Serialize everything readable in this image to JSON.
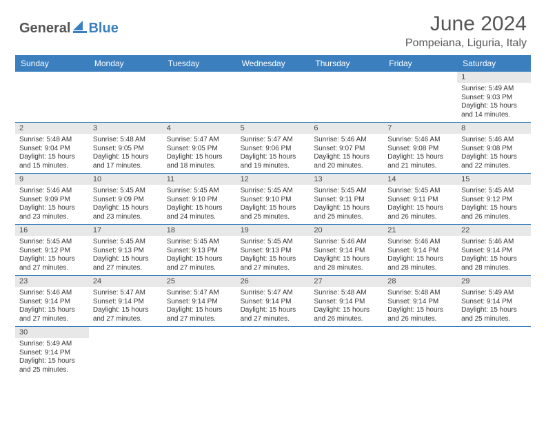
{
  "brand": {
    "part1": "General",
    "part2": "Blue"
  },
  "title": "June 2024",
  "location": "Pompeiana, Liguria, Italy",
  "colors": {
    "header_bg": "#3b7fbf",
    "header_text": "#ffffff",
    "daynum_bg": "#e8e8e8",
    "text": "#333333",
    "title_text": "#555555"
  },
  "dayNames": [
    "Sunday",
    "Monday",
    "Tuesday",
    "Wednesday",
    "Thursday",
    "Friday",
    "Saturday"
  ],
  "weeks": [
    [
      null,
      null,
      null,
      null,
      null,
      null,
      {
        "d": "1",
        "sr": "5:49 AM",
        "ss": "9:03 PM",
        "dl": "15 hours and 14 minutes."
      }
    ],
    [
      {
        "d": "2",
        "sr": "5:48 AM",
        "ss": "9:04 PM",
        "dl": "15 hours and 15 minutes."
      },
      {
        "d": "3",
        "sr": "5:48 AM",
        "ss": "9:05 PM",
        "dl": "15 hours and 17 minutes."
      },
      {
        "d": "4",
        "sr": "5:47 AM",
        "ss": "9:05 PM",
        "dl": "15 hours and 18 minutes."
      },
      {
        "d": "5",
        "sr": "5:47 AM",
        "ss": "9:06 PM",
        "dl": "15 hours and 19 minutes."
      },
      {
        "d": "6",
        "sr": "5:46 AM",
        "ss": "9:07 PM",
        "dl": "15 hours and 20 minutes."
      },
      {
        "d": "7",
        "sr": "5:46 AM",
        "ss": "9:08 PM",
        "dl": "15 hours and 21 minutes."
      },
      {
        "d": "8",
        "sr": "5:46 AM",
        "ss": "9:08 PM",
        "dl": "15 hours and 22 minutes."
      }
    ],
    [
      {
        "d": "9",
        "sr": "5:46 AM",
        "ss": "9:09 PM",
        "dl": "15 hours and 23 minutes."
      },
      {
        "d": "10",
        "sr": "5:45 AM",
        "ss": "9:09 PM",
        "dl": "15 hours and 23 minutes."
      },
      {
        "d": "11",
        "sr": "5:45 AM",
        "ss": "9:10 PM",
        "dl": "15 hours and 24 minutes."
      },
      {
        "d": "12",
        "sr": "5:45 AM",
        "ss": "9:10 PM",
        "dl": "15 hours and 25 minutes."
      },
      {
        "d": "13",
        "sr": "5:45 AM",
        "ss": "9:11 PM",
        "dl": "15 hours and 25 minutes."
      },
      {
        "d": "14",
        "sr": "5:45 AM",
        "ss": "9:11 PM",
        "dl": "15 hours and 26 minutes."
      },
      {
        "d": "15",
        "sr": "5:45 AM",
        "ss": "9:12 PM",
        "dl": "15 hours and 26 minutes."
      }
    ],
    [
      {
        "d": "16",
        "sr": "5:45 AM",
        "ss": "9:12 PM",
        "dl": "15 hours and 27 minutes."
      },
      {
        "d": "17",
        "sr": "5:45 AM",
        "ss": "9:13 PM",
        "dl": "15 hours and 27 minutes."
      },
      {
        "d": "18",
        "sr": "5:45 AM",
        "ss": "9:13 PM",
        "dl": "15 hours and 27 minutes."
      },
      {
        "d": "19",
        "sr": "5:45 AM",
        "ss": "9:13 PM",
        "dl": "15 hours and 27 minutes."
      },
      {
        "d": "20",
        "sr": "5:46 AM",
        "ss": "9:14 PM",
        "dl": "15 hours and 28 minutes."
      },
      {
        "d": "21",
        "sr": "5:46 AM",
        "ss": "9:14 PM",
        "dl": "15 hours and 28 minutes."
      },
      {
        "d": "22",
        "sr": "5:46 AM",
        "ss": "9:14 PM",
        "dl": "15 hours and 28 minutes."
      }
    ],
    [
      {
        "d": "23",
        "sr": "5:46 AM",
        "ss": "9:14 PM",
        "dl": "15 hours and 27 minutes."
      },
      {
        "d": "24",
        "sr": "5:47 AM",
        "ss": "9:14 PM",
        "dl": "15 hours and 27 minutes."
      },
      {
        "d": "25",
        "sr": "5:47 AM",
        "ss": "9:14 PM",
        "dl": "15 hours and 27 minutes."
      },
      {
        "d": "26",
        "sr": "5:47 AM",
        "ss": "9:14 PM",
        "dl": "15 hours and 27 minutes."
      },
      {
        "d": "27",
        "sr": "5:48 AM",
        "ss": "9:14 PM",
        "dl": "15 hours and 26 minutes."
      },
      {
        "d": "28",
        "sr": "5:48 AM",
        "ss": "9:14 PM",
        "dl": "15 hours and 26 minutes."
      },
      {
        "d": "29",
        "sr": "5:49 AM",
        "ss": "9:14 PM",
        "dl": "15 hours and 25 minutes."
      }
    ],
    [
      {
        "d": "30",
        "sr": "5:49 AM",
        "ss": "9:14 PM",
        "dl": "15 hours and 25 minutes."
      },
      null,
      null,
      null,
      null,
      null,
      null
    ]
  ],
  "labels": {
    "sunrise": "Sunrise:",
    "sunset": "Sunset:",
    "daylight": "Daylight:"
  }
}
